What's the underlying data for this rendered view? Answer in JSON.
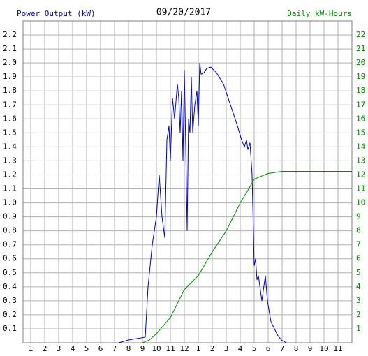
{
  "chart_data": {
    "type": "line",
    "title": "09/20/2017",
    "y_label": "Power Output (kW)",
    "y2_label": "Daily kW-Hours",
    "grid": true,
    "xlim": [
      0.45,
      24
    ],
    "xticks": [
      1,
      2,
      3,
      4,
      5,
      6,
      7,
      8,
      9,
      10,
      11,
      12,
      {
        "value": 13,
        "label": "1"
      },
      {
        "value": 14,
        "label": "2"
      },
      {
        "value": 15,
        "label": "3"
      },
      {
        "value": 16,
        "label": "4"
      },
      {
        "value": 17,
        "label": "5"
      },
      {
        "value": 18,
        "label": "6"
      },
      {
        "value": 19,
        "label": "7"
      },
      {
        "value": 20,
        "label": "8"
      },
      {
        "value": 21,
        "label": "9"
      },
      {
        "value": 22,
        "label": "10"
      },
      {
        "value": 23,
        "label": "11"
      }
    ],
    "ylim": [
      0,
      2.3
    ],
    "yticks": [
      0.1,
      0.2,
      0.3,
      0.4,
      0.5,
      0.6,
      0.7,
      0.8,
      0.9,
      {
        "value": 1.0,
        "label": "1.0"
      },
      1.1,
      1.2,
      1.3,
      1.4,
      1.5,
      1.6,
      1.7,
      1.8,
      1.9,
      {
        "value": 2.0,
        "label": "2.0"
      },
      2.1,
      2.2
    ],
    "y2lim": [
      0,
      23
    ],
    "y2ticks": [
      1,
      2,
      3,
      4,
      5,
      6,
      7,
      8,
      9,
      10,
      11,
      12,
      13,
      14,
      15,
      16,
      17,
      18,
      19,
      20,
      21,
      22
    ],
    "series": [
      {
        "name": "Power Output (kW)",
        "color": "#0000cc",
        "x": [
          7.3,
          8,
          9.2,
          9.4,
          9.7,
          10,
          10.2,
          10.4,
          10.6,
          10.75,
          10.9,
          11,
          11.15,
          11.3,
          11.5,
          11.6,
          11.7,
          11.8,
          11.9,
          12,
          12.1,
          12.2,
          12.3,
          12.4,
          12.5,
          12.6,
          12.75,
          12.9,
          13,
          13.1,
          13.2,
          13.4,
          13.6,
          13.9,
          14.3,
          14.8,
          15.3,
          15.8,
          16.1,
          16.3,
          16.45,
          16.55,
          16.7,
          16.85,
          17,
          17.1,
          17.2,
          17.3,
          17.55,
          17.8,
          17.95,
          18.2,
          18.45,
          18.7,
          18.95,
          19.3
        ],
        "values": [
          0,
          0.02,
          0.04,
          0.4,
          0.7,
          0.9,
          1.2,
          0.9,
          0.75,
          1.45,
          1.55,
          1.3,
          1.75,
          1.6,
          1.85,
          1.75,
          1.5,
          1.8,
          1.3,
          1.95,
          1.4,
          0.8,
          1.6,
          1.5,
          1.9,
          1.5,
          1.7,
          1.8,
          1.55,
          2.0,
          1.92,
          1.93,
          1.96,
          1.97,
          1.93,
          1.85,
          1.7,
          1.55,
          1.45,
          1.4,
          1.45,
          1.38,
          1.43,
          1.2,
          0.55,
          0.6,
          0.45,
          0.48,
          0.3,
          0.48,
          0.3,
          0.15,
          0.1,
          0.05,
          0.02,
          0
        ]
      },
      {
        "name": "Daily kW-Hours",
        "color": "#008800",
        "axis": "y2",
        "x": [
          9,
          9.5,
          10,
          11,
          12,
          13,
          14,
          15,
          16,
          16.5,
          17,
          18,
          19,
          24
        ],
        "values": [
          0,
          0.2,
          0.65,
          1.8,
          3.8,
          4.8,
          6.5,
          8,
          10,
          10.8,
          11.7,
          12.1,
          12.25,
          12.25
        ]
      }
    ]
  }
}
